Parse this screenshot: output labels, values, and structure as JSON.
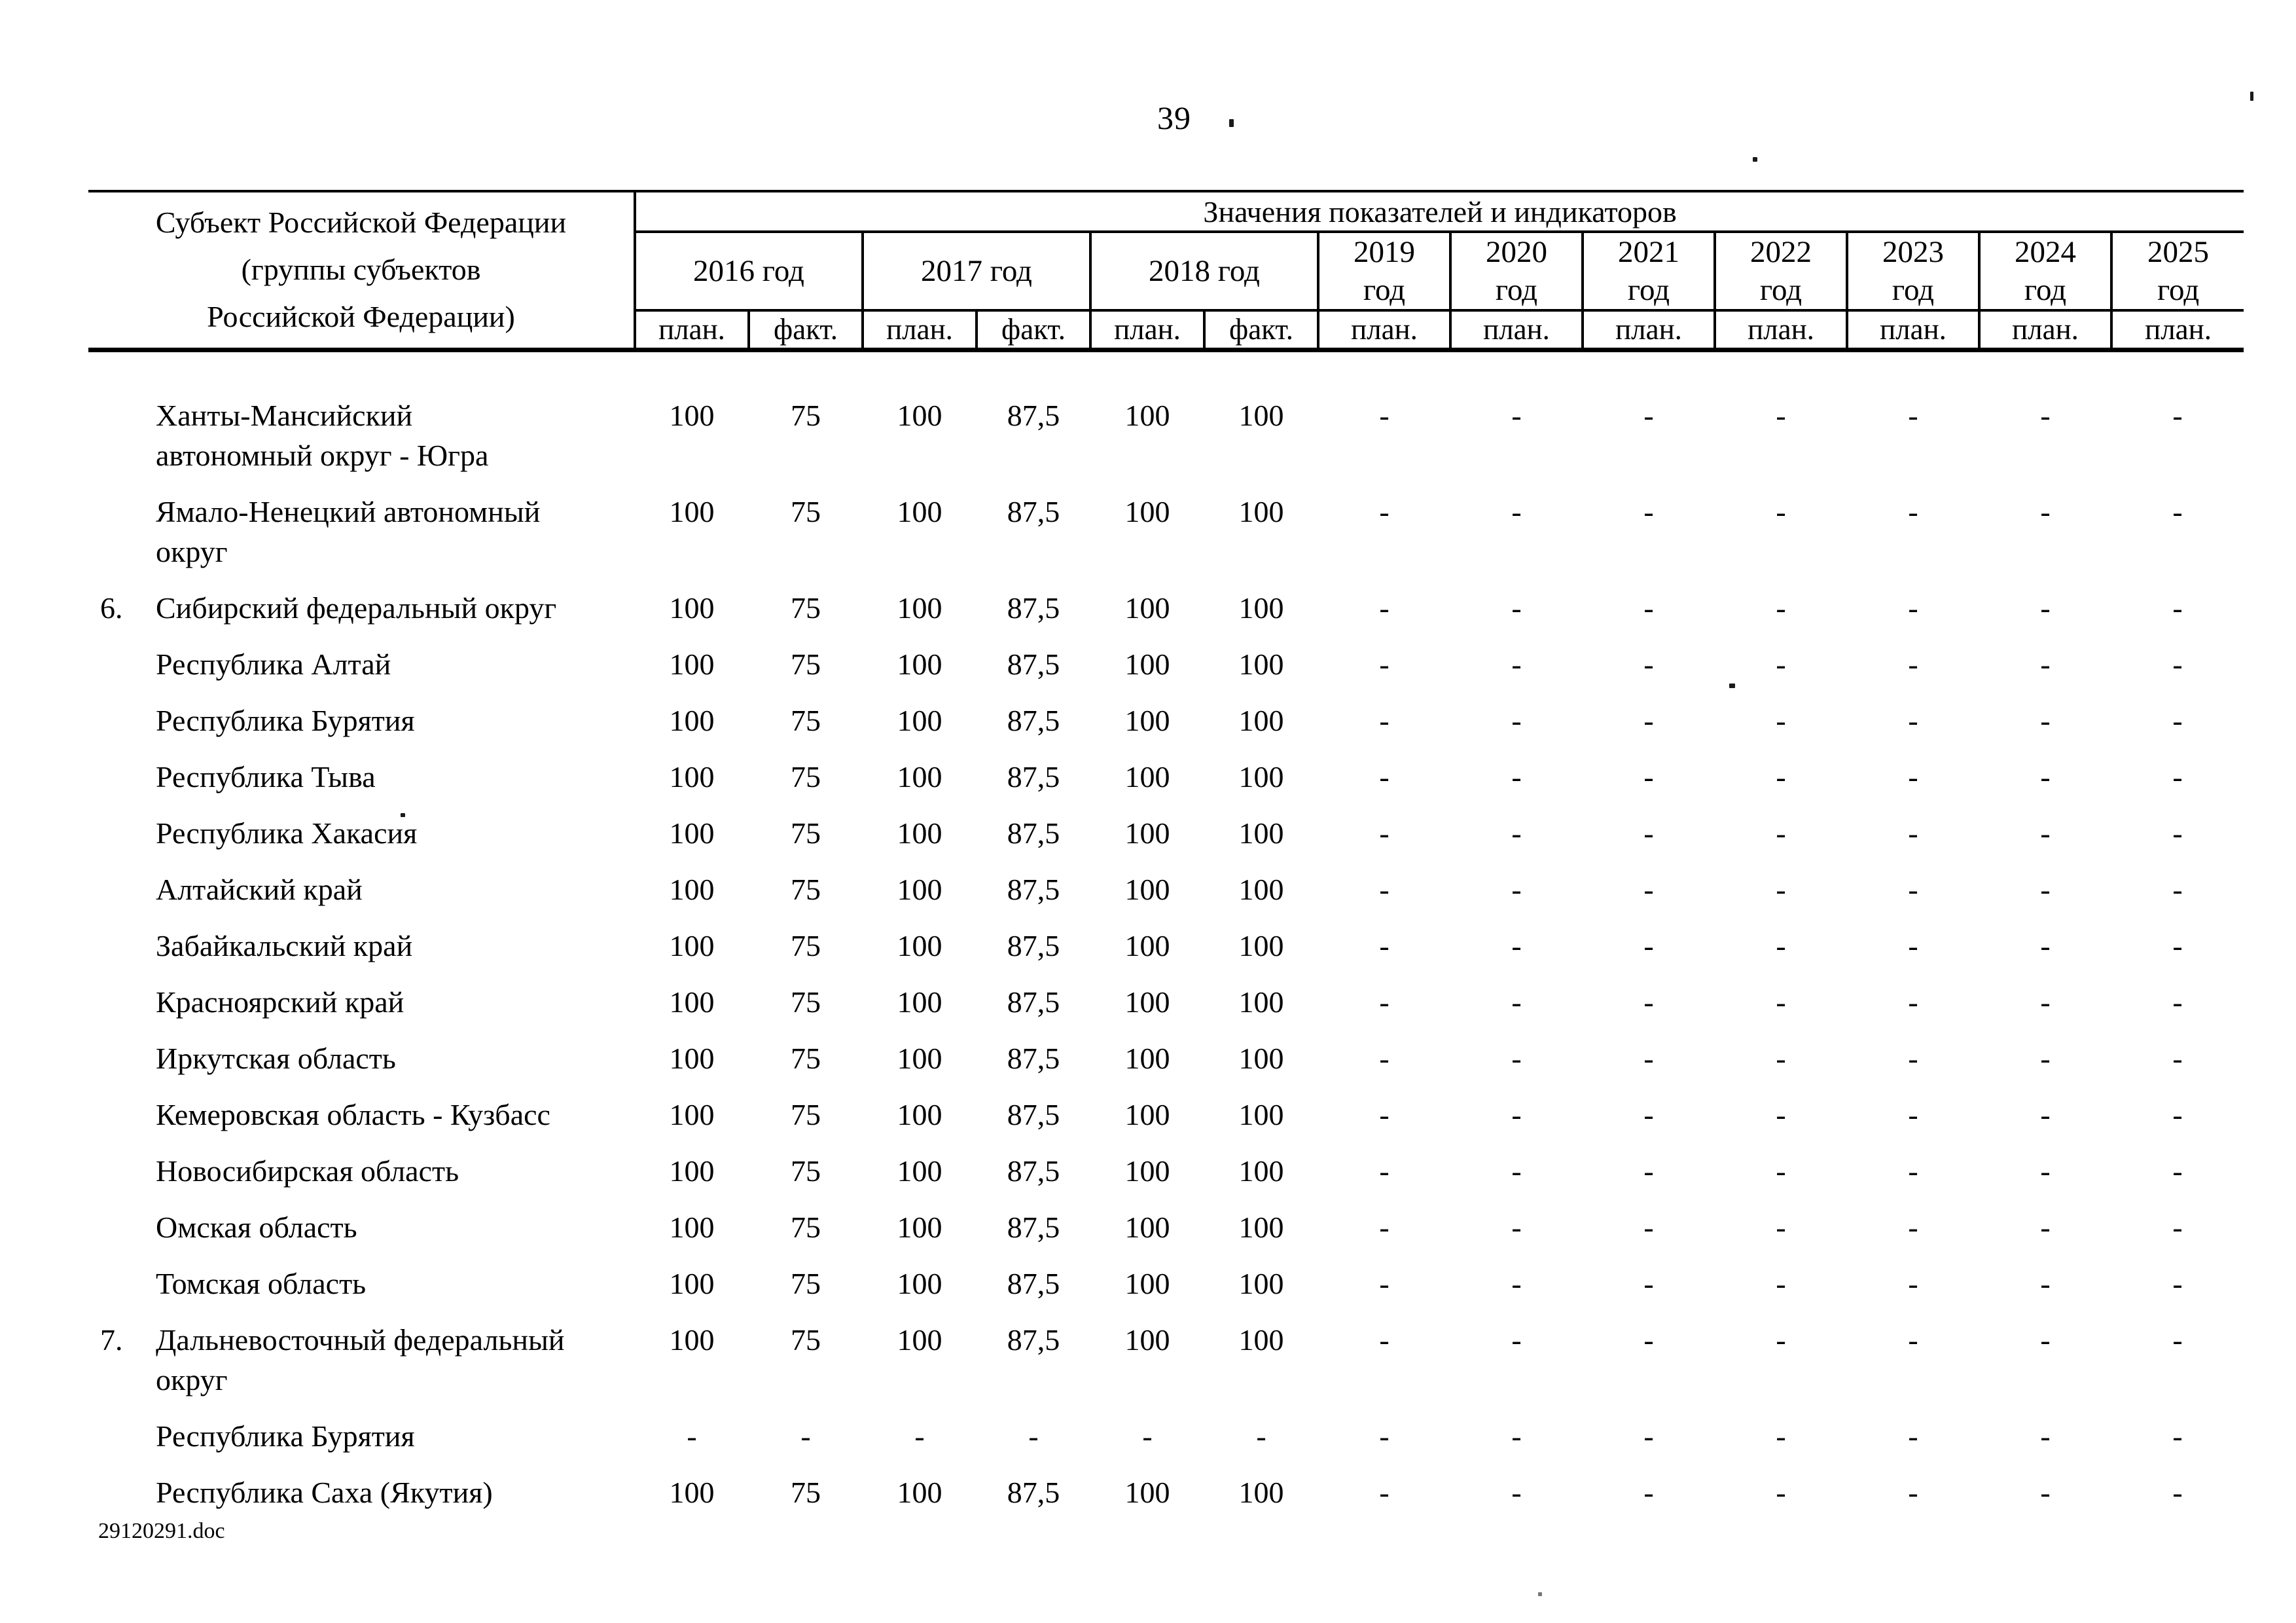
{
  "page": {
    "number": "39",
    "footer_filename": "29120291.doc"
  },
  "table": {
    "header": {
      "subject_column": "Субъект Российской Федерации\n(группы субъектов\nРоссийской Федерации)",
      "values_title": "Значения показателей и индикаторов",
      "year_groups": [
        {
          "label": "2016 год",
          "sub": [
            "план.",
            "факт."
          ]
        },
        {
          "label": "2017 год",
          "sub": [
            "план.",
            "факт."
          ]
        },
        {
          "label": "2018 год",
          "sub": [
            "план.",
            "факт."
          ]
        },
        {
          "label": "2019\nгод",
          "sub": [
            "план."
          ]
        },
        {
          "label": "2020\nгод",
          "sub": [
            "план."
          ]
        },
        {
          "label": "2021\nгод",
          "sub": [
            "план."
          ]
        },
        {
          "label": "2022\nгод",
          "sub": [
            "план."
          ]
        },
        {
          "label": "2023\nгод",
          "sub": [
            "план."
          ]
        },
        {
          "label": "2024\nгод",
          "sub": [
            "план."
          ]
        },
        {
          "label": "2025\nгод",
          "sub": [
            "план."
          ]
        }
      ]
    },
    "rows": [
      {
        "num": "",
        "name": "Ханты-Мансийский\nавтономный округ - Югра",
        "values": [
          "100",
          "75",
          "100",
          "87,5",
          "100",
          "100",
          "-",
          "-",
          "-",
          "-",
          "-",
          "-",
          "-"
        ]
      },
      {
        "num": "",
        "name": "Ямало-Ненецкий автономный\nокруг",
        "values": [
          "100",
          "75",
          "100",
          "87,5",
          "100",
          "100",
          "-",
          "-",
          "-",
          "-",
          "-",
          "-",
          "-"
        ]
      },
      {
        "num": "6.",
        "name": "Сибирский федеральный округ",
        "values": [
          "100",
          "75",
          "100",
          "87,5",
          "100",
          "100",
          "-",
          "-",
          "-",
          "-",
          "-",
          "-",
          "-"
        ]
      },
      {
        "num": "",
        "name": "Республика Алтай",
        "values": [
          "100",
          "75",
          "100",
          "87,5",
          "100",
          "100",
          "-",
          "-",
          "-",
          "-",
          "-",
          "-",
          "-"
        ]
      },
      {
        "num": "",
        "name": "Республика Бурятия",
        "values": [
          "100",
          "75",
          "100",
          "87,5",
          "100",
          "100",
          "-",
          "-",
          "-",
          "-",
          "-",
          "-",
          "-"
        ]
      },
      {
        "num": "",
        "name": "Республика Тыва",
        "values": [
          "100",
          "75",
          "100",
          "87,5",
          "100",
          "100",
          "-",
          "-",
          "-",
          "-",
          "-",
          "-",
          "-"
        ]
      },
      {
        "num": "",
        "name": "Республика Хакасия",
        "values": [
          "100",
          "75",
          "100",
          "87,5",
          "100",
          "100",
          "-",
          "-",
          "-",
          "-",
          "-",
          "-",
          "-"
        ]
      },
      {
        "num": "",
        "name": "Алтайский край",
        "values": [
          "100",
          "75",
          "100",
          "87,5",
          "100",
          "100",
          "-",
          "-",
          "-",
          "-",
          "-",
          "-",
          "-"
        ]
      },
      {
        "num": "",
        "name": "Забайкальский край",
        "values": [
          "100",
          "75",
          "100",
          "87,5",
          "100",
          "100",
          "-",
          "-",
          "-",
          "-",
          "-",
          "-",
          "-"
        ]
      },
      {
        "num": "",
        "name": "Красноярский край",
        "values": [
          "100",
          "75",
          "100",
          "87,5",
          "100",
          "100",
          "-",
          "-",
          "-",
          "-",
          "-",
          "-",
          "-"
        ]
      },
      {
        "num": "",
        "name": "Иркутская область",
        "values": [
          "100",
          "75",
          "100",
          "87,5",
          "100",
          "100",
          "-",
          "-",
          "-",
          "-",
          "-",
          "-",
          "-"
        ]
      },
      {
        "num": "",
        "name": "Кемеровская область - Кузбасс",
        "values": [
          "100",
          "75",
          "100",
          "87,5",
          "100",
          "100",
          "-",
          "-",
          "-",
          "-",
          "-",
          "-",
          "-"
        ]
      },
      {
        "num": "",
        "name": "Новосибирская область",
        "values": [
          "100",
          "75",
          "100",
          "87,5",
          "100",
          "100",
          "-",
          "-",
          "-",
          "-",
          "-",
          "-",
          "-"
        ]
      },
      {
        "num": "",
        "name": "Омская область",
        "values": [
          "100",
          "75",
          "100",
          "87,5",
          "100",
          "100",
          "-",
          "-",
          "-",
          "-",
          "-",
          "-",
          "-"
        ]
      },
      {
        "num": "",
        "name": "Томская область",
        "values": [
          "100",
          "75",
          "100",
          "87,5",
          "100",
          "100",
          "-",
          "-",
          "-",
          "-",
          "-",
          "-",
          "-"
        ]
      },
      {
        "num": "7.",
        "name": "Дальневосточный федеральный\nокруг",
        "values": [
          "100",
          "75",
          "100",
          "87,5",
          "100",
          "100",
          "-",
          "-",
          "-",
          "-",
          "-",
          "-",
          "-"
        ]
      },
      {
        "num": "",
        "name": "Республика Бурятия",
        "values": [
          "-",
          "-",
          "-",
          "-",
          "-",
          "-",
          "-",
          "-",
          "-",
          "-",
          "-",
          "-",
          "-"
        ]
      },
      {
        "num": "",
        "name": "Республика Саха (Якутия)",
        "values": [
          "100",
          "75",
          "100",
          "87,5",
          "100",
          "100",
          "-",
          "-",
          "-",
          "-",
          "-",
          "-",
          "-"
        ]
      }
    ]
  }
}
